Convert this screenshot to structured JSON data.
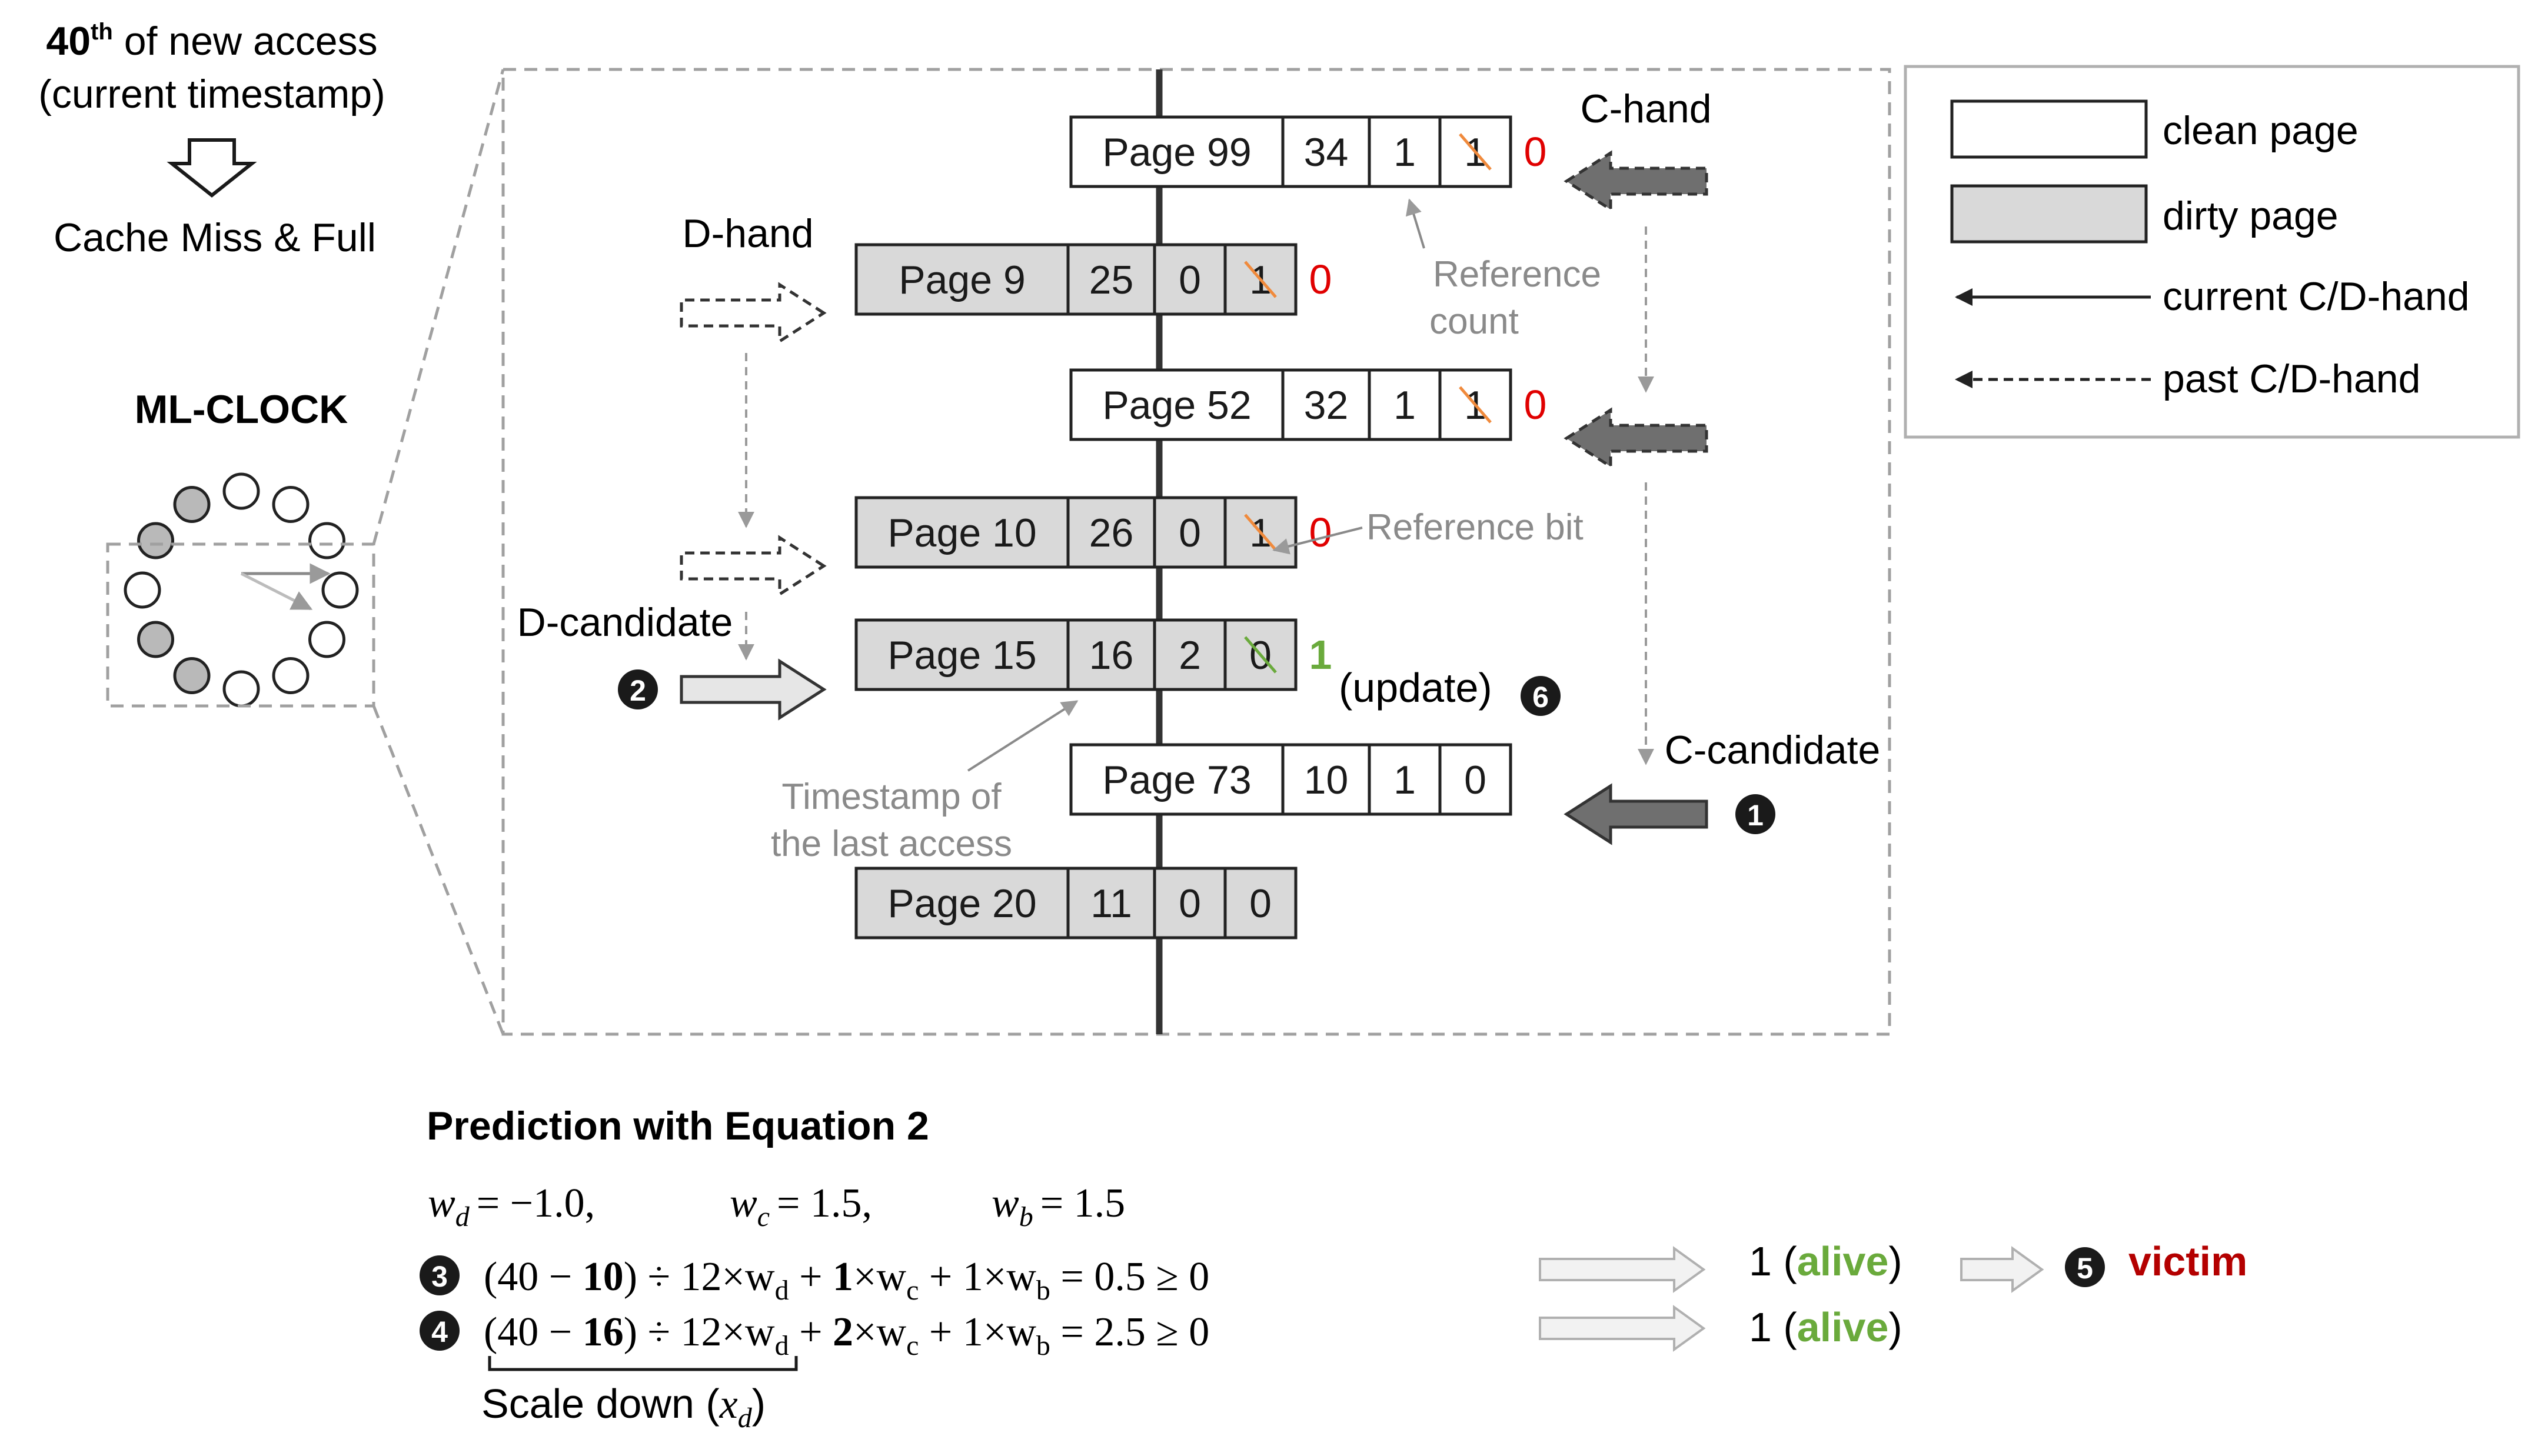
{
  "header": {
    "sup_num": "40",
    "sup_th": "th",
    "line1_rest": " of new access",
    "line2": "(current timestamp)",
    "line3": "Cache Miss & Full"
  },
  "clock": {
    "title": "ML-CLOCK"
  },
  "legend": {
    "clean": "clean page",
    "dirty": "dirty page",
    "current": "current C/D-hand",
    "past": "past C/D-hand"
  },
  "hands": {
    "c_hand": "C-hand",
    "d_hand": "D-hand",
    "d_candidate": "D-candidate",
    "c_candidate": "C-candidate"
  },
  "pages": [
    {
      "name": "Page 99",
      "ts": "34",
      "count": "1",
      "bit": "1",
      "new_bit": "0",
      "new_bit_color": "#e00000",
      "dirty": false
    },
    {
      "name": "Page 9",
      "ts": "25",
      "count": "0",
      "bit": "1",
      "new_bit": "0",
      "new_bit_color": "#e00000",
      "dirty": true
    },
    {
      "name": "Page 52",
      "ts": "32",
      "count": "1",
      "bit": "1",
      "new_bit": "0",
      "new_bit_color": "#e00000",
      "dirty": false
    },
    {
      "name": "Page 10",
      "ts": "26",
      "count": "0",
      "bit": "1",
      "new_bit": "0",
      "new_bit_color": "#e00000",
      "dirty": true
    },
    {
      "name": "Page 15",
      "ts": "16",
      "count": "2",
      "bit": "0",
      "new_bit": "1",
      "new_bit_color": "#6aaa3c",
      "dirty": true
    },
    {
      "name": "Page 73",
      "ts": "10",
      "count": "1",
      "bit": "0",
      "new_bit": "",
      "new_bit_color": "#e00000",
      "dirty": false
    },
    {
      "name": "Page 20",
      "ts": "11",
      "count": "0",
      "bit": "0",
      "new_bit": "",
      "new_bit_color": "#e00000",
      "dirty": true
    }
  ],
  "annotations": {
    "ref_count_1": "Reference",
    "ref_count_2": "count",
    "ref_bit": "Reference bit",
    "timestamp_1": "Timestamp of",
    "timestamp_2": "the last access",
    "update": "(update)"
  },
  "steps": {
    "s1": "1",
    "s2": "2",
    "s3": "3",
    "s4": "4",
    "s5": "5",
    "s6": "6"
  },
  "prediction": {
    "title": "Prediction with Equation 2",
    "weights": {
      "wd_sym": "w",
      "wd_sub": "d",
      "wd_val": "= −1.0,",
      "wc_sym": "w",
      "wc_sub": "c",
      "wc_val": "= 1.5,",
      "wb_sym": "w",
      "wb_sub": "b",
      "wb_val": "= 1.5"
    },
    "eq3": {
      "open": "(40 − ",
      "bold_ts": "10",
      "mid": ") ÷ 12×w",
      "sub_d": "d",
      "plus1": " + ",
      "bold_c": "1",
      "times_c": "×w",
      "sub_c": "c",
      "plus2": " + 1×w",
      "sub_b": "b",
      "tail": " = 0.5 ≥ 0"
    },
    "eq4": {
      "open": "(40 − ",
      "bold_ts": "16",
      "mid": ") ÷ 12×w",
      "sub_d": "d",
      "plus1": " + ",
      "bold_c": "2",
      "times_c": "×w",
      "sub_c": "c",
      "plus2": " + 1×w",
      "sub_b": "b",
      "tail": " = 2.5 ≥ 0"
    },
    "scale_down": "Scale down (",
    "scale_sym": "x",
    "scale_sub": "d",
    "scale_close": ")",
    "result1_pre": "1 (",
    "result1_word": "alive",
    "result1_post": ")",
    "result2_pre": "1 (",
    "result2_word": "alive",
    "result2_post": ")",
    "victim": "victim"
  },
  "colors": {
    "green": "#6aaa3c",
    "red": "#e00000",
    "dark_red": "#b40000",
    "gray_text": "#8a8a8a",
    "dirty_fill": "#d9d9d9",
    "hand_fill": "#6f6f6f",
    "strike": "#f08a3c"
  }
}
